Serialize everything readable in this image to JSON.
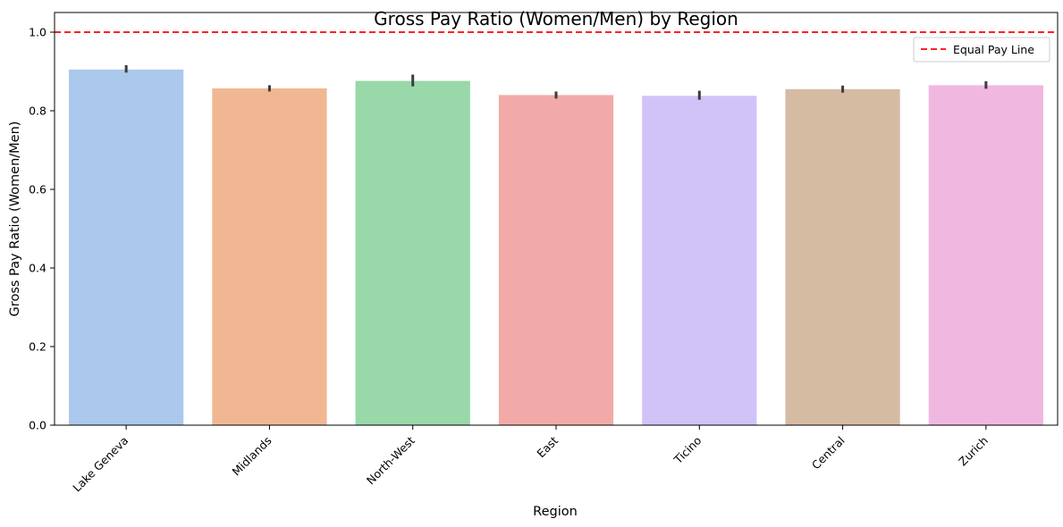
{
  "chart_data": {
    "type": "bar",
    "title": "Gross Pay Ratio (Women/Men) by Region",
    "xlabel": "Region",
    "ylabel": "Gross Pay Ratio (Women/Men)",
    "ylim": [
      0,
      1.05
    ],
    "yticks": [
      0.0,
      0.2,
      0.4,
      0.6,
      0.8,
      1.0
    ],
    "ytick_labels": [
      "0.0",
      "0.2",
      "0.4",
      "0.6",
      "0.8",
      "1.0"
    ],
    "categories": [
      "Lake Geneva",
      "Midlands",
      "North-West",
      "East",
      "Ticino",
      "Central",
      "Zurich"
    ],
    "values": [
      0.905,
      0.857,
      0.876,
      0.84,
      0.838,
      0.855,
      0.865
    ],
    "error_low": [
      0.897,
      0.849,
      0.862,
      0.831,
      0.828,
      0.846,
      0.856
    ],
    "error_high": [
      0.916,
      0.865,
      0.892,
      0.849,
      0.851,
      0.864,
      0.875
    ],
    "colors": [
      "#abc9ec",
      "#f0b792",
      "#99d8a8",
      "#f2aaa8",
      "#d1c3f7",
      "#d6bba3",
      "#f0b8e0"
    ],
    "reference_line": {
      "y": 1.0,
      "label": "Equal Pay Line",
      "color": "#ff0000",
      "style": "dashed"
    },
    "legend": {
      "placement": "top-right",
      "entries": [
        "Equal Pay Line"
      ]
    },
    "grid": false
  }
}
